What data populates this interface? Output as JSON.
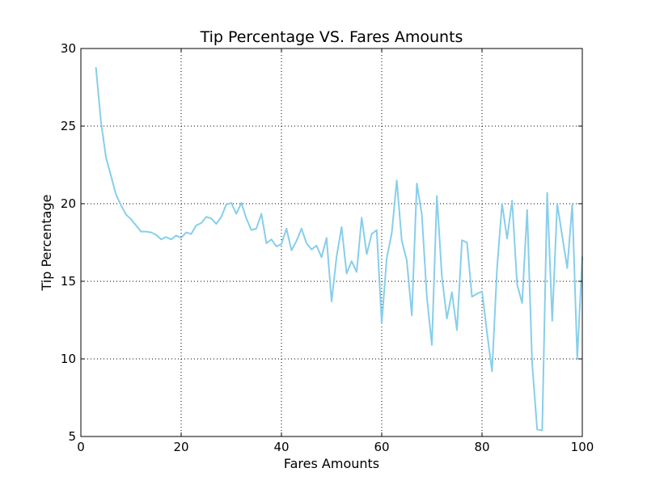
{
  "chart_data": {
    "type": "line",
    "title": "Tip Percentage VS. Fares Amounts",
    "xlabel": "Fares Amounts",
    "ylabel": "Tip Percentage",
    "xlim": [
      0,
      100
    ],
    "ylim": [
      5,
      30
    ],
    "xticks": [
      "0",
      "20",
      "40",
      "60",
      "80",
      "100"
    ],
    "yticks": [
      "5",
      "10",
      "15",
      "20",
      "25",
      "30"
    ],
    "grid": true,
    "line_color": "#87CEEB",
    "series": [
      {
        "x": [
          3,
          4,
          5,
          6,
          7,
          8,
          9,
          10,
          11,
          12,
          13,
          14,
          15,
          16,
          17,
          18,
          19,
          20,
          21,
          22,
          23,
          24,
          25,
          26,
          27,
          28,
          29,
          30,
          31,
          32,
          33,
          34,
          35,
          36,
          37,
          38,
          39,
          40,
          41,
          42,
          43,
          44,
          45,
          46,
          47,
          48,
          49,
          50,
          51,
          52,
          53,
          54,
          55,
          56,
          57,
          58,
          59,
          60,
          61,
          62,
          63,
          64,
          65,
          66,
          67,
          68,
          69,
          70,
          71,
          72,
          73,
          74,
          75,
          76,
          77,
          78,
          79,
          80,
          81,
          82,
          83,
          84,
          85,
          86,
          87,
          88,
          89,
          90,
          91,
          92,
          93,
          94,
          95,
          96,
          97,
          98,
          99,
          100
        ],
        "y": [
          28.8,
          25.3,
          23.0,
          21.8,
          20.6,
          19.9,
          19.3,
          19.0,
          18.6,
          18.2,
          18.2,
          18.15,
          18.0,
          17.7,
          17.85,
          17.7,
          17.95,
          17.8,
          18.15,
          18.05,
          18.6,
          18.75,
          19.15,
          19.05,
          18.7,
          19.15,
          19.95,
          20.05,
          19.35,
          20.05,
          19.05,
          18.3,
          18.4,
          19.35,
          17.45,
          17.7,
          17.25,
          17.4,
          18.4,
          17.0,
          17.6,
          18.4,
          17.45,
          17.05,
          17.3,
          16.55,
          17.8,
          13.7,
          16.6,
          18.5,
          15.5,
          16.3,
          15.6,
          19.1,
          16.75,
          18.05,
          18.3,
          12.3,
          16.5,
          18.1,
          21.5,
          17.6,
          16.35,
          12.8,
          21.3,
          19.3,
          14.0,
          10.9,
          20.5,
          15.3,
          12.6,
          14.3,
          11.85,
          17.65,
          17.5,
          14.0,
          14.2,
          14.35,
          11.7,
          9.2,
          15.85,
          20.0,
          17.75,
          20.2,
          14.8,
          13.6,
          19.6,
          9.7,
          5.45,
          5.4,
          20.7,
          12.45,
          20.0,
          17.9,
          15.85,
          19.95,
          10.0,
          16.6
        ]
      }
    ]
  }
}
